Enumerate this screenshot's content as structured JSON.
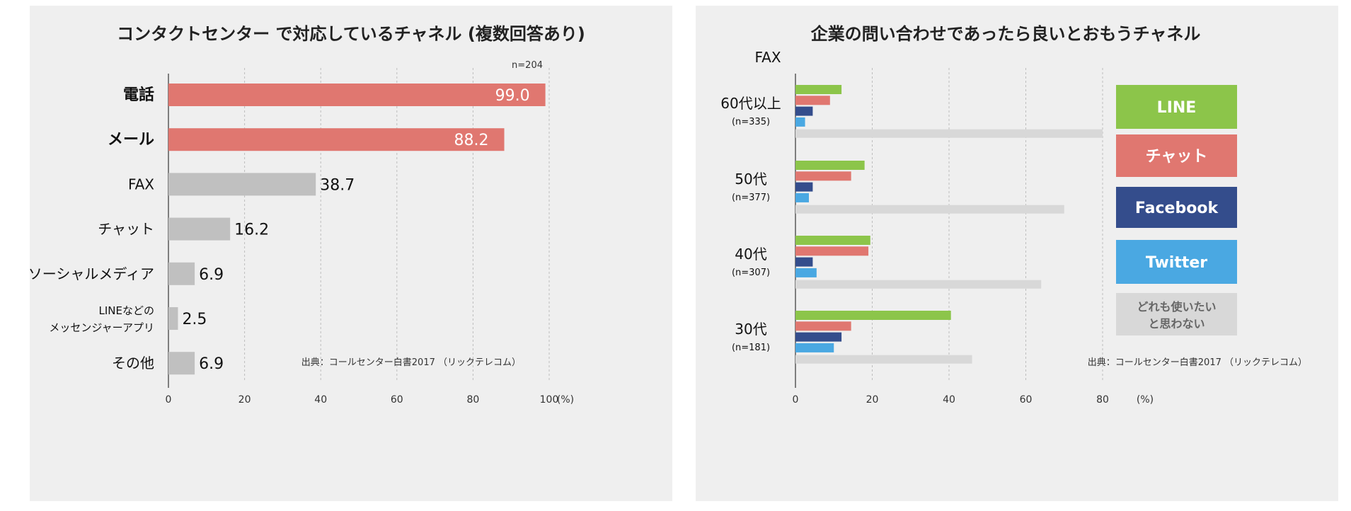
{
  "chart_data": [
    {
      "type": "bar",
      "orientation": "horizontal",
      "title": "コンタクトセンター で対応しているチャネル (複数回答あり)",
      "sample_note": "n=204",
      "categories": [
        "電話",
        "メール",
        "FAX",
        "チャット",
        "ソーシャルメディア",
        "LINEなどの\nメッセンジャーアプリ",
        "その他"
      ],
      "category_lines": [
        [
          "電話"
        ],
        [
          "メール"
        ],
        [
          "FAX"
        ],
        [
          "チャット"
        ],
        [
          "ソーシャルメディア"
        ],
        [
          "LINEなどの",
          "メッセンジャーアプリ"
        ],
        [
          "その他"
        ]
      ],
      "values": [
        99.0,
        88.2,
        38.7,
        16.2,
        6.9,
        2.5,
        6.9
      ],
      "value_labels": [
        "99.0",
        "88.2",
        "38.7",
        "16.2",
        "6.9",
        "2.5",
        "6.9"
      ],
      "highlight": [
        true,
        true,
        false,
        false,
        false,
        false,
        false
      ],
      "colors": {
        "highlight": "#e07770",
        "normal": "#c0c0c0"
      },
      "xlim": [
        0,
        100
      ],
      "xticks": [
        0,
        20,
        40,
        60,
        80,
        100
      ],
      "xtick_labels": [
        "0",
        "20",
        "40",
        "60",
        "80",
        "100"
      ],
      "unit": "(%)",
      "source": "出典：コールセンター白書2017 （リックテレコム）",
      "grid": true
    },
    {
      "type": "bar",
      "orientation": "horizontal",
      "title": "企業の問い合わせであったら良いとおもうチャネル",
      "corner_label": "FAX",
      "groups": [
        {
          "name": "60代以上",
          "n": "(n=335)"
        },
        {
          "name": "50代",
          "n": "(n=377)"
        },
        {
          "name": "40代",
          "n": "(n=307)"
        },
        {
          "name": "30代",
          "n": "(n=181)"
        }
      ],
      "series": [
        {
          "name": "LINE",
          "color": "#8cc54a",
          "values": [
            12,
            18,
            19.5,
            40.5
          ]
        },
        {
          "name": "チャット",
          "color": "#e07770",
          "values": [
            9,
            14.5,
            19,
            14.5
          ]
        },
        {
          "name": "Facebook",
          "color": "#344d8c",
          "values": [
            4.5,
            4.5,
            4.5,
            12
          ]
        },
        {
          "name": "Twitter",
          "color": "#4aa8e2",
          "values": [
            2.5,
            3.5,
            5.5,
            10
          ]
        },
        {
          "name": "どれも使いたい\nと思わない",
          "color": "#d8d8d8",
          "values": [
            80,
            70,
            64,
            46
          ]
        }
      ],
      "legend_lines": [
        [
          "LINE"
        ],
        [
          "チャット"
        ],
        [
          "Facebook"
        ],
        [
          "Twitter"
        ],
        [
          "どれも使いたい",
          "と思わない"
        ]
      ],
      "legend_text_colors": [
        "#ffffff",
        "#ffffff",
        "#ffffff",
        "#ffffff",
        "#666666"
      ],
      "xlim": [
        0,
        80
      ],
      "xticks": [
        0,
        20,
        40,
        60,
        80
      ],
      "xtick_labels": [
        "0",
        "20",
        "40",
        "60",
        "80"
      ],
      "unit": "(%)",
      "source": "出典：コールセンター白書2017 （リックテレコム）",
      "legend_position": "top-right",
      "grid": true
    }
  ]
}
